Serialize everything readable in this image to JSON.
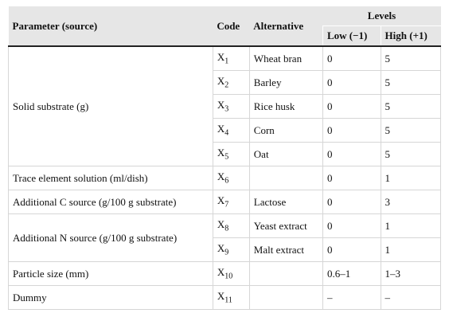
{
  "header": {
    "parameter": "Parameter (source)",
    "code": "Code",
    "alternative": "Alternative",
    "levels": "Levels",
    "low": "Low (−1)",
    "high": "High (+1)"
  },
  "groups": [
    {
      "parameter": "Solid substrate (g)",
      "rows": [
        {
          "code": "X",
          "sub": "1",
          "alternative": "Wheat bran",
          "low": 0,
          "high": 5
        },
        {
          "code": "X",
          "sub": "2",
          "alternative": "Barley",
          "low": 0,
          "high": 5
        },
        {
          "code": "X",
          "sub": "3",
          "alternative": "Rice husk",
          "low": 0,
          "high": 5
        },
        {
          "code": "X",
          "sub": "4",
          "alternative": "Corn",
          "low": 0,
          "high": 5
        },
        {
          "code": "X",
          "sub": "5",
          "alternative": "Oat",
          "low": 0,
          "high": 5
        }
      ]
    },
    {
      "parameter": "Trace element solution (ml/dish)",
      "rows": [
        {
          "code": "X",
          "sub": "6",
          "low": 0,
          "high": 1
        }
      ]
    },
    {
      "parameter": "Additional C source (g/100 g substrate)",
      "rows": [
        {
          "code": "X",
          "sub": "7",
          "alternative": "Lactose",
          "low": 0,
          "high": 3
        }
      ]
    },
    {
      "parameter": "Additional N source (g/100 g substrate)",
      "rows": [
        {
          "code": "X",
          "sub": "8",
          "alternative": "Yeast extract",
          "low": 0,
          "high": 1
        },
        {
          "code": "X",
          "sub": "9",
          "alternative": "Malt extract",
          "low": 0,
          "high": 1
        }
      ]
    },
    {
      "parameter": "Particle size (mm)",
      "rows": [
        {
          "code": "X",
          "sub": "10",
          "low": "0.6–1",
          "high": "1–3"
        }
      ]
    },
    {
      "parameter": "Dummy",
      "rows": [
        {
          "code": "X",
          "sub": "11",
          "low": "–",
          "high": "–"
        }
      ]
    }
  ]
}
